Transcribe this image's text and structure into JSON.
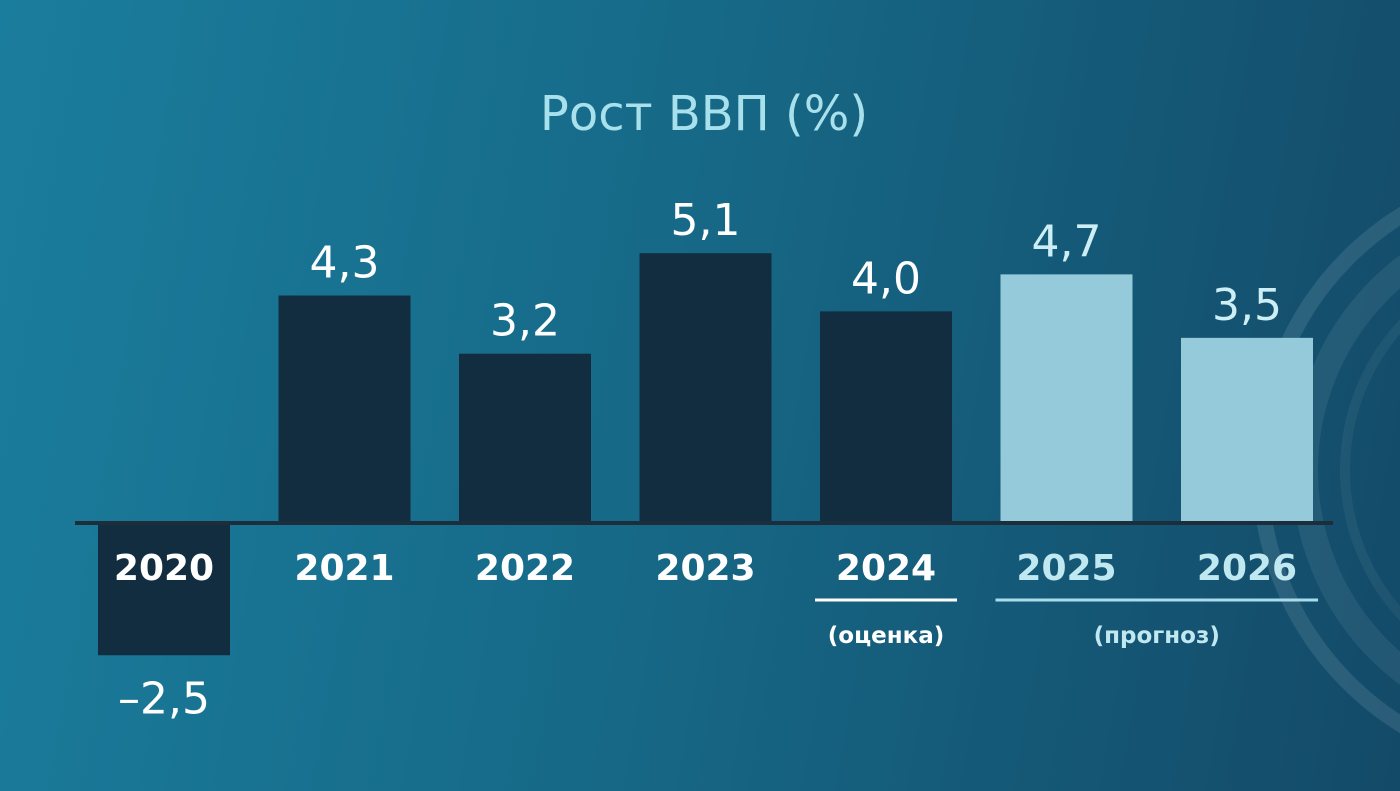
{
  "chart_data": {
    "type": "bar",
    "title": "Рост ВВП (%)",
    "categories": [
      "2020",
      "2021",
      "2022",
      "2023",
      "2024",
      "2025",
      "2026"
    ],
    "values": [
      -2.5,
      4.3,
      3.2,
      5.1,
      4.0,
      4.7,
      3.5
    ],
    "value_labels": [
      "–2,5",
      "4,3",
      "3,2",
      "5,1",
      "4,0",
      "4,7",
      "3,5"
    ],
    "bar_kind": [
      "actual",
      "actual",
      "actual",
      "actual",
      "estimate",
      "forecast",
      "forecast"
    ],
    "ylim": [
      -2.5,
      5.1
    ],
    "grid": false,
    "annotations": [
      {
        "label": "(оценка)",
        "categories": [
          "2024"
        ]
      },
      {
        "label": "(прогноз)",
        "categories": [
          "2025",
          "2026"
        ]
      }
    ],
    "colors": {
      "actual": "#122c40",
      "forecast": "#94cada",
      "title": "#a8e0ec",
      "value_actual": "#ffffff",
      "value_forecast": "#cdeef5",
      "year_actual": "#ffffff",
      "year_forecast": "#bfe8f1",
      "baseline": "#1c2d3c",
      "underline_estimate": "#ffffff",
      "underline_forecast": "#a9dcea"
    }
  }
}
